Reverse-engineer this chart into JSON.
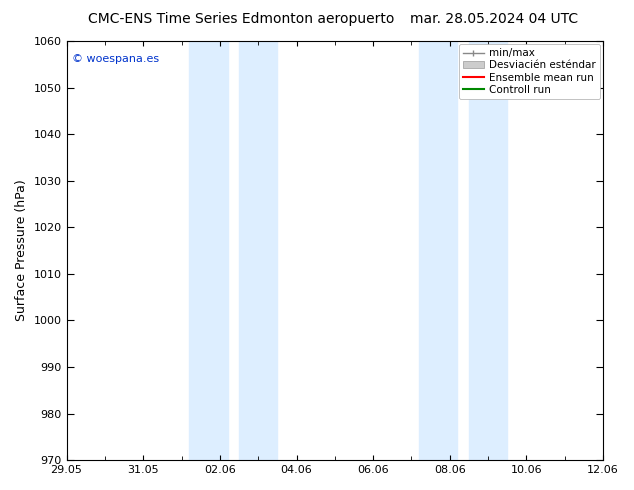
{
  "title_left": "CMC-ENS Time Series Edmonton aeropuerto",
  "title_right": "mar. 28.05.2024 04 UTC",
  "ylabel": "Surface Pressure (hPa)",
  "ylim": [
    970,
    1060
  ],
  "yticks": [
    970,
    980,
    990,
    1000,
    1010,
    1020,
    1030,
    1040,
    1050,
    1060
  ],
  "xtick_labels": [
    "29.05",
    "31.05",
    "02.06",
    "04.06",
    "06.06",
    "08.06",
    "10.06",
    "12.06"
  ],
  "xtick_positions": [
    0,
    2,
    4,
    6,
    8,
    10,
    12,
    14
  ],
  "shaded_bands": [
    {
      "xmin": 3.2,
      "xmax": 4.2
    },
    {
      "xmin": 4.5,
      "xmax": 5.5
    },
    {
      "xmin": 9.2,
      "xmax": 10.2
    },
    {
      "xmin": 10.5,
      "xmax": 11.5
    }
  ],
  "shade_color": "#ddeeff",
  "background_color": "#ffffff",
  "plot_bg_color": "#ffffff",
  "watermark": "© woespana.es",
  "watermark_color": "#0033cc",
  "title_fontsize": 10,
  "ylabel_fontsize": 9,
  "tick_fontsize": 8,
  "watermark_fontsize": 8,
  "legend_fontsize": 7.5,
  "xmin": 0,
  "xmax": 14,
  "legend_label_minmax": "min/max",
  "legend_label_ens": "Ensemble mean run",
  "legend_label_ctrl": "Controll run",
  "minmax_color": "#888888",
  "std_color": "#cccccc",
  "ens_color": "#ff0000",
  "ctrl_color": "#008800"
}
